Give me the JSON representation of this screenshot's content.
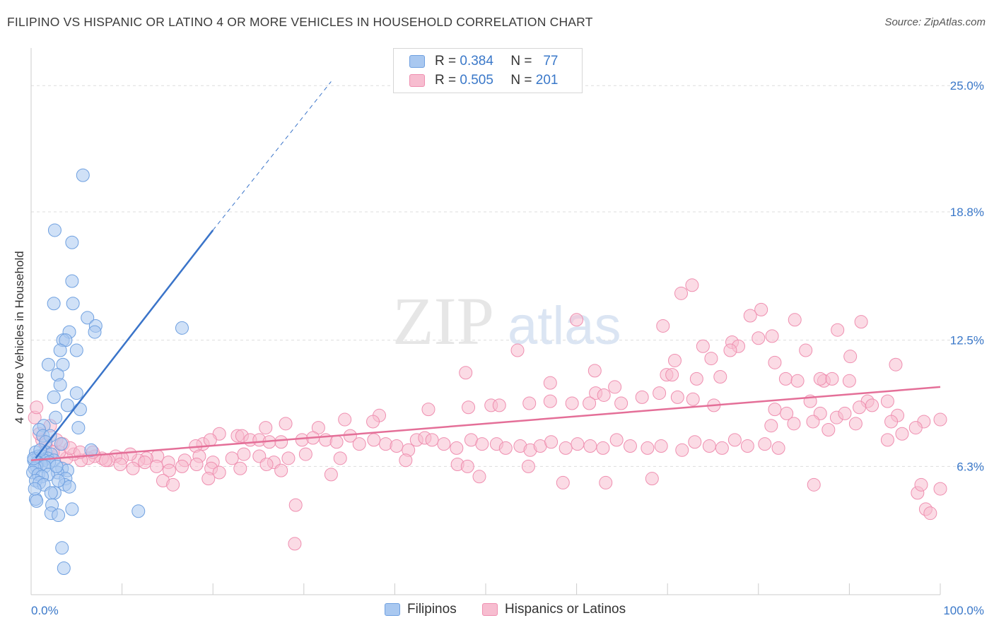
{
  "header": {
    "title": "FILIPINO VS HISPANIC OR LATINO 4 OR MORE VEHICLES IN HOUSEHOLD CORRELATION CHART",
    "source": "Source: ZipAtlas.com"
  },
  "watermark": {
    "zip": "ZIP",
    "atlas": "atlas"
  },
  "legend": {
    "rows": [
      {
        "r_label": "R =",
        "r_value": "0.384",
        "n_label": "N =",
        "n_value": "77",
        "color": "#a9c8f0",
        "border": "#6fa0e0"
      },
      {
        "r_label": "R =",
        "r_value": "0.505",
        "n_label": "N =",
        "n_value": "201",
        "color": "#f7bdd0",
        "border": "#ef8fb0"
      }
    ]
  },
  "bottom_legend": {
    "items": [
      {
        "label": "Filipinos",
        "color": "#a9c8f0",
        "border": "#6fa0e0"
      },
      {
        "label": "Hispanics or Latinos",
        "color": "#f7bdd0",
        "border": "#ef8fb0"
      }
    ]
  },
  "chart_data": {
    "type": "scatter",
    "ylabel": "4 or more Vehicles in Household",
    "xlim": [
      0,
      100
    ],
    "ylim": [
      0,
      26.5
    ],
    "x_tick_labels": [
      {
        "value": 0,
        "label": "0.0%"
      },
      {
        "value": 100,
        "label": "100.0%"
      }
    ],
    "y_tick_labels": [
      {
        "value": 6.3,
        "label": "6.3%"
      },
      {
        "value": 12.5,
        "label": "12.5%"
      },
      {
        "value": 18.8,
        "label": "18.8%"
      },
      {
        "value": 25.0,
        "label": "25.0%"
      }
    ],
    "x_minor_ticks": [
      0,
      10,
      20,
      30,
      40,
      50,
      60,
      70,
      80,
      90,
      100
    ],
    "colors": {
      "filipinos_fill": "#a9c8f0",
      "filipinos_stroke": "#6fa0e0",
      "filipinos_line": "#3a74c9",
      "hispanic_fill": "#f7bdd0",
      "hispanic_stroke": "#ef8fb0",
      "hispanic_line": "#e46f98",
      "grid": "#dddddd",
      "tick_label": "#3a78c9"
    },
    "series": [
      {
        "name": "Filipinos",
        "trend": {
          "x0": 0.5,
          "y0": 6.7,
          "x1": 20,
          "y1": 17.9,
          "dash_to_x": 33,
          "dash_to_y": 25.2
        },
        "points": [
          [
            5.7,
            20.6
          ],
          [
            2.6,
            17.9
          ],
          [
            4.5,
            17.3
          ],
          [
            4.5,
            15.4
          ],
          [
            2.5,
            14.3
          ],
          [
            4.6,
            14.3
          ],
          [
            6.2,
            13.6
          ],
          [
            7.1,
            13.2
          ],
          [
            16.6,
            13.1
          ],
          [
            4.2,
            12.9
          ],
          [
            7.0,
            12.9
          ],
          [
            3.5,
            12.5
          ],
          [
            3.8,
            12.5
          ],
          [
            5.0,
            12.0
          ],
          [
            3.2,
            12.0
          ],
          [
            1.9,
            11.3
          ],
          [
            3.5,
            11.3
          ],
          [
            2.9,
            10.8
          ],
          [
            3.2,
            10.3
          ],
          [
            5.0,
            9.9
          ],
          [
            2.5,
            9.7
          ],
          [
            4.0,
            9.3
          ],
          [
            5.4,
            9.1
          ],
          [
            2.7,
            8.7
          ],
          [
            5.2,
            8.2
          ],
          [
            1.4,
            8.3
          ],
          [
            0.9,
            8.1
          ],
          [
            1.3,
            7.8
          ],
          [
            2.1,
            7.8
          ],
          [
            1.6,
            7.5
          ],
          [
            3.3,
            7.4
          ],
          [
            6.6,
            7.1
          ],
          [
            0.5,
            7.0
          ],
          [
            1.6,
            7.0
          ],
          [
            2.2,
            6.9
          ],
          [
            0.8,
            6.8
          ],
          [
            1.2,
            6.8
          ],
          [
            1.8,
            6.7
          ],
          [
            1.0,
            6.6
          ],
          [
            2.5,
            6.6
          ],
          [
            0.3,
            6.6
          ],
          [
            1.4,
            6.6
          ],
          [
            0.7,
            6.5
          ],
          [
            2.0,
            6.5
          ],
          [
            1.1,
            6.4
          ],
          [
            0.6,
            6.3
          ],
          [
            1.5,
            6.3
          ],
          [
            0.4,
            6.2
          ],
          [
            3.4,
            6.2
          ],
          [
            4.0,
            6.1
          ],
          [
            2.9,
            6.0
          ],
          [
            0.2,
            6.0
          ],
          [
            0.8,
            5.9
          ],
          [
            1.9,
            5.9
          ],
          [
            1.2,
            5.8
          ],
          [
            3.8,
            5.7
          ],
          [
            0.5,
            5.6
          ],
          [
            0.9,
            5.5
          ],
          [
            3.7,
            5.4
          ],
          [
            1.4,
            5.4
          ],
          [
            4.2,
            5.3
          ],
          [
            2.6,
            5.0
          ],
          [
            2.2,
            5.0
          ],
          [
            0.5,
            4.7
          ],
          [
            0.6,
            4.6
          ],
          [
            2.3,
            4.4
          ],
          [
            11.8,
            4.1
          ],
          [
            4.5,
            4.2
          ],
          [
            2.2,
            4.0
          ],
          [
            3.0,
            3.9
          ],
          [
            3.4,
            2.3
          ],
          [
            3.6,
            1.3
          ],
          [
            0.3,
            6.7
          ],
          [
            1.0,
            7.1
          ],
          [
            2.8,
            6.3
          ],
          [
            0.4,
            5.2
          ],
          [
            3.0,
            5.6
          ]
        ]
      },
      {
        "name": "Hispanics or Latinos",
        "trend": {
          "x0": 0,
          "y0": 6.6,
          "x1": 100,
          "y1": 10.2
        },
        "points": [
          [
            72.7,
            15.2
          ],
          [
            71.5,
            14.8
          ],
          [
            80.3,
            14.0
          ],
          [
            79.1,
            13.7
          ],
          [
            60.0,
            13.5
          ],
          [
            84.0,
            13.5
          ],
          [
            91.3,
            13.4
          ],
          [
            69.5,
            13.2
          ],
          [
            88.7,
            13.0
          ],
          [
            81.5,
            12.7
          ],
          [
            80.0,
            12.6
          ],
          [
            77.1,
            12.4
          ],
          [
            77.8,
            12.2
          ],
          [
            73.9,
            12.2
          ],
          [
            76.9,
            12.0
          ],
          [
            53.5,
            12.0
          ],
          [
            85.2,
            12.0
          ],
          [
            90.1,
            11.7
          ],
          [
            74.8,
            11.6
          ],
          [
            70.8,
            11.5
          ],
          [
            81.8,
            11.4
          ],
          [
            95.1,
            11.3
          ],
          [
            62.0,
            11.0
          ],
          [
            69.9,
            10.8
          ],
          [
            70.5,
            10.8
          ],
          [
            75.8,
            10.7
          ],
          [
            73.2,
            10.6
          ],
          [
            83.0,
            10.6
          ],
          [
            84.3,
            10.5
          ],
          [
            87.2,
            10.5
          ],
          [
            86.8,
            10.6
          ],
          [
            88.1,
            10.6
          ],
          [
            90.0,
            10.5
          ],
          [
            57.1,
            10.4
          ],
          [
            47.8,
            10.9
          ],
          [
            64.2,
            10.2
          ],
          [
            62.1,
            9.9
          ],
          [
            69.1,
            9.9
          ],
          [
            63.0,
            9.8
          ],
          [
            67.2,
            9.7
          ],
          [
            71.1,
            9.7
          ],
          [
            72.8,
            9.6
          ],
          [
            57.1,
            9.5
          ],
          [
            59.5,
            9.4
          ],
          [
            61.4,
            9.4
          ],
          [
            64.9,
            9.4
          ],
          [
            75.1,
            9.3
          ],
          [
            92.0,
            9.5
          ],
          [
            94.2,
            9.5
          ],
          [
            92.5,
            9.3
          ],
          [
            85.7,
            9.5
          ],
          [
            81.8,
            9.1
          ],
          [
            83.1,
            8.9
          ],
          [
            88.6,
            8.7
          ],
          [
            86.8,
            8.9
          ],
          [
            89.5,
            8.9
          ],
          [
            91.1,
            9.2
          ],
          [
            95.3,
            8.8
          ],
          [
            98.2,
            8.5
          ],
          [
            100.0,
            8.6
          ],
          [
            94.6,
            8.5
          ],
          [
            83.9,
            8.4
          ],
          [
            86.0,
            8.5
          ],
          [
            81.4,
            8.3
          ],
          [
            95.8,
            7.9
          ],
          [
            97.3,
            8.2
          ],
          [
            90.7,
            8.4
          ],
          [
            87.7,
            8.1
          ],
          [
            94.2,
            7.6
          ],
          [
            48.1,
            9.2
          ],
          [
            50.6,
            9.3
          ],
          [
            51.5,
            9.3
          ],
          [
            54.8,
            9.4
          ],
          [
            43.7,
            9.1
          ],
          [
            38.3,
            8.8
          ],
          [
            37.6,
            8.5
          ],
          [
            34.5,
            8.6
          ],
          [
            31.6,
            8.2
          ],
          [
            28.0,
            8.4
          ],
          [
            25.8,
            8.2
          ],
          [
            20.7,
            7.9
          ],
          [
            22.7,
            7.8
          ],
          [
            23.2,
            7.8
          ],
          [
            24.1,
            7.6
          ],
          [
            25.1,
            7.6
          ],
          [
            27.5,
            7.5
          ],
          [
            26.2,
            7.5
          ],
          [
            18.9,
            7.4
          ],
          [
            18.1,
            7.3
          ],
          [
            19.7,
            7.6
          ],
          [
            29.8,
            7.6
          ],
          [
            31.0,
            7.7
          ],
          [
            32.4,
            7.6
          ],
          [
            33.6,
            7.5
          ],
          [
            35.1,
            7.8
          ],
          [
            36.1,
            7.4
          ],
          [
            37.7,
            7.6
          ],
          [
            39.0,
            7.4
          ],
          [
            40.2,
            7.3
          ],
          [
            41.5,
            7.1
          ],
          [
            42.4,
            7.6
          ],
          [
            43.3,
            7.7
          ],
          [
            44.1,
            7.6
          ],
          [
            45.4,
            7.4
          ],
          [
            46.8,
            7.2
          ],
          [
            48.4,
            7.6
          ],
          [
            49.6,
            7.4
          ],
          [
            51.2,
            7.4
          ],
          [
            52.2,
            7.2
          ],
          [
            53.8,
            7.3
          ],
          [
            54.9,
            7.1
          ],
          [
            56.0,
            7.3
          ],
          [
            57.2,
            7.5
          ],
          [
            58.8,
            7.2
          ],
          [
            60.1,
            7.4
          ],
          [
            61.5,
            7.3
          ],
          [
            62.9,
            7.2
          ],
          [
            64.4,
            7.6
          ],
          [
            65.9,
            7.3
          ],
          [
            67.8,
            7.2
          ],
          [
            69.3,
            7.3
          ],
          [
            71.6,
            7.1
          ],
          [
            73.0,
            7.5
          ],
          [
            74.6,
            7.3
          ],
          [
            76.0,
            7.2
          ],
          [
            77.4,
            7.6
          ],
          [
            78.8,
            7.3
          ],
          [
            80.7,
            7.4
          ],
          [
            82.2,
            7.2
          ],
          [
            34.0,
            6.7
          ],
          [
            30.2,
            6.9
          ],
          [
            28.3,
            6.7
          ],
          [
            26.7,
            6.5
          ],
          [
            25.1,
            6.8
          ],
          [
            23.4,
            6.9
          ],
          [
            22.1,
            6.7
          ],
          [
            20.0,
            6.5
          ],
          [
            18.5,
            6.8
          ],
          [
            16.9,
            6.6
          ],
          [
            15.1,
            6.5
          ],
          [
            13.9,
            6.8
          ],
          [
            12.7,
            6.7
          ],
          [
            11.8,
            6.6
          ],
          [
            10.9,
            6.9
          ],
          [
            10.0,
            6.7
          ],
          [
            9.3,
            6.8
          ],
          [
            8.5,
            6.6
          ],
          [
            7.8,
            6.7
          ],
          [
            7.0,
            6.8
          ],
          [
            6.3,
            6.7
          ],
          [
            5.5,
            6.6
          ],
          [
            4.7,
            6.9
          ],
          [
            3.9,
            6.7
          ],
          [
            3.1,
            7.0
          ],
          [
            2.4,
            7.0
          ],
          [
            1.6,
            7.4
          ],
          [
            1.2,
            7.6
          ],
          [
            0.9,
            7.9
          ],
          [
            0.4,
            8.7
          ],
          [
            0.6,
            9.2
          ],
          [
            2.1,
            8.3
          ],
          [
            2.8,
            7.6
          ],
          [
            3.5,
            7.4
          ],
          [
            4.3,
            7.2
          ],
          [
            5.4,
            7.0
          ],
          [
            6.8,
            7.0
          ],
          [
            8.2,
            6.6
          ],
          [
            9.8,
            6.4
          ],
          [
            11.2,
            6.2
          ],
          [
            12.5,
            6.5
          ],
          [
            13.8,
            6.3
          ],
          [
            15.2,
            6.1
          ],
          [
            16.6,
            6.3
          ],
          [
            18.2,
            6.4
          ],
          [
            19.8,
            6.2
          ],
          [
            20.7,
            6.0
          ],
          [
            23.0,
            6.2
          ],
          [
            25.9,
            6.4
          ],
          [
            27.5,
            6.1
          ],
          [
            41.2,
            6.6
          ],
          [
            46.9,
            6.4
          ],
          [
            48.0,
            6.3
          ],
          [
            49.3,
            5.8
          ],
          [
            54.7,
            6.3
          ],
          [
            58.5,
            5.5
          ],
          [
            63.2,
            5.5
          ],
          [
            68.3,
            5.7
          ],
          [
            86.1,
            5.4
          ],
          [
            97.5,
            5.0
          ],
          [
            97.9,
            5.4
          ],
          [
            100.0,
            5.2
          ],
          [
            98.4,
            4.2
          ],
          [
            98.9,
            4.0
          ],
          [
            14.5,
            5.6
          ],
          [
            15.6,
            5.4
          ],
          [
            19.5,
            5.7
          ],
          [
            29.1,
            4.4
          ],
          [
            33.0,
            5.9
          ],
          [
            29.0,
            2.5
          ]
        ]
      }
    ]
  }
}
